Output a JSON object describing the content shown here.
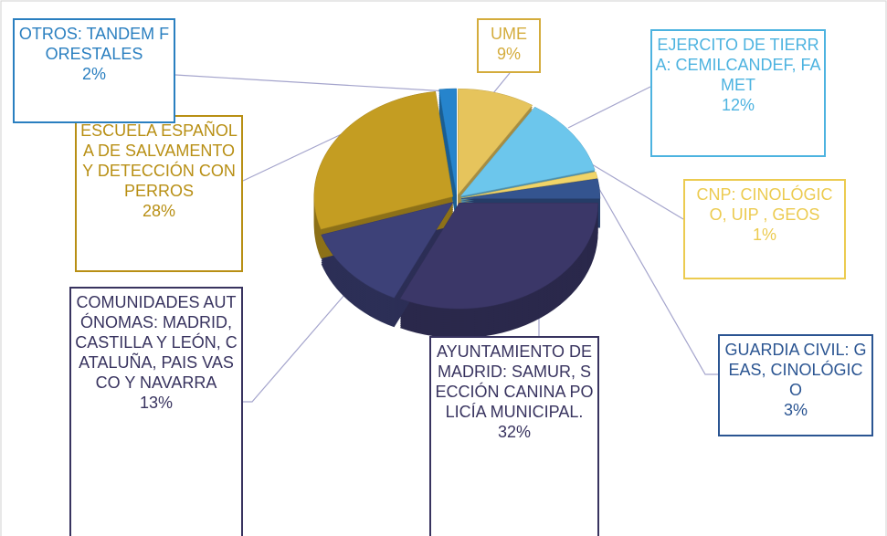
{
  "chart_data": {
    "type": "pie",
    "categories": [
      "UME",
      "EJERCITO DE TIERRA: CEMILCANDEF, FAMET",
      "CNP: CINOLÓGICO, UIP , GEOS",
      "GUARDIA CIVIL: GEAS, CINOLÓGICO",
      "AYUNTAMIENTO DE MADRID: SAMUR, SECCIÓN CANINA POLICÍA MUNICIPAL.",
      "COMUNIDADES AUTÓNOMAS: MADRID, CASTILLA Y LEÓN, CATALUÑA, PAIS VASCO Y NAVARRA",
      "ESCUELA ESPAÑOLA DE SALVAMENTO Y DETECCIÓN CON PERROS",
      "OTROS: TANDEM FORESTALES"
    ],
    "values": [
      9,
      12,
      1,
      3,
      32,
      13,
      28,
      2
    ],
    "value_labels": [
      "9%",
      "12%",
      "1%",
      "3%",
      "32%",
      "13%",
      "28%",
      "2%"
    ],
    "colors": [
      "#e6c45c",
      "#6cc6ec",
      "#f0d468",
      "#34548f",
      "#3b3768",
      "#3d4178",
      "#c49d22",
      "#2684cc"
    ]
  }
}
